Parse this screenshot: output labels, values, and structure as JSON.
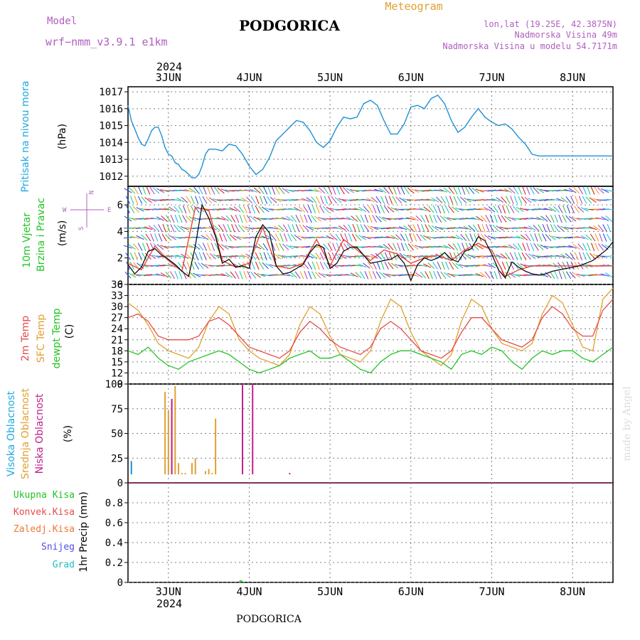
{
  "header": {
    "model_label": "Model",
    "model_name": "wrf−nmm_v3.9.1  e1km",
    "title": "PODGORICA",
    "meteogram": "Meteogram",
    "coords": "lon,lat (19.25E, 42.3875N)",
    "altitude": "Nadmorska Visina 49m",
    "model_altitude": "Nadmorska Visina u modelu 54.7171m",
    "year_top": "2024",
    "year_bottom": "2024",
    "footer_title": "PODGORICA",
    "watermark": "made by Angel"
  },
  "colors": {
    "pressure": "#1e90d6",
    "wind_speed": "#000000",
    "wind_gust": "#e8463c",
    "t2m": "#e84a4a",
    "sfc": "#e0a030",
    "dewpt": "#22c422",
    "high_cloud": "#1e90d6",
    "mid_cloud": "#e0a030",
    "low_cloud": "#c0208a",
    "grid": "#808080"
  },
  "days": [
    "3JUN",
    "4JUN",
    "5JUN",
    "6JUN",
    "7JUN",
    "8JUN"
  ],
  "panels": {
    "pressure": {
      "label_main": "Pritisak na nivou mora",
      "unit": "(hPa)",
      "ticks": [
        "1012",
        "1013",
        "1014",
        "1015",
        "1016",
        "1017"
      ]
    },
    "wind": {
      "label_line1": "10m Vjetar",
      "label_line2": "Brzina i Pravac",
      "unit": "(m/s)",
      "compass_w": "W",
      "compass_e": "E",
      "compass_n": "N",
      "compass_s": "S",
      "ticks": [
        "0",
        "2",
        "4",
        "6"
      ]
    },
    "temp": {
      "label_2m": "2m Temp",
      "label_sfc": "SFC Temp",
      "label_dew": "dewpt Temp",
      "unit": "(C)",
      "ticks": [
        "9",
        "12",
        "15",
        "18",
        "21",
        "24",
        "27",
        "30",
        "33",
        "36"
      ]
    },
    "cloud": {
      "label_high": "Visoka Oblacnost",
      "label_mid": "Srednja Oblacnost",
      "label_low": "Niska Oblacnost",
      "unit": "(%)",
      "ticks": [
        "0",
        "25",
        "50",
        "75",
        "100"
      ]
    },
    "precip": {
      "label_total": "Ukupna Kisa",
      "label_conv": "Konvek.Kisa",
      "label_frz": "Zaledj.Kisa",
      "label_snow": "Snijeg",
      "label_grad": "Grad",
      "unit": "1hr Precip (mm)",
      "ticks": [
        "0",
        "0.2",
        "0.4",
        "0.6",
        "0.8"
      ]
    }
  },
  "chart_data": [
    {
      "type": "line",
      "name": "pressure",
      "x_unit": "hours from 2024-06-02 12UTC",
      "xlim": [
        0,
        144
      ],
      "ylim": [
        1011.4,
        1017.3
      ],
      "series": [
        {
          "x": [
            0,
            1,
            2,
            3,
            4,
            5,
            6,
            7,
            8,
            9,
            10,
            11,
            12,
            13,
            14,
            15,
            16,
            17,
            18,
            19,
            20,
            21,
            22,
            23,
            24,
            26,
            28,
            30,
            32,
            34,
            36,
            38,
            40,
            42,
            44,
            46,
            48,
            50,
            52,
            54,
            56,
            58,
            60,
            62,
            64,
            66,
            68,
            70,
            72,
            74,
            76,
            78,
            80,
            82,
            84,
            86,
            88,
            90,
            92,
            94,
            96,
            98,
            100,
            102,
            104,
            106,
            108,
            110,
            112,
            114,
            116,
            118,
            120,
            122,
            124,
            126,
            128,
            130,
            132,
            134,
            136,
            138,
            140,
            142,
            144
          ],
          "y": [
            1016.2,
            1015.3,
            1014.8,
            1014.3,
            1013.9,
            1013.8,
            1014.2,
            1014.7,
            1014.9,
            1014.9,
            1014.4,
            1013.7,
            1013.3,
            1013.2,
            1012.8,
            1012.7,
            1012.4,
            1012.3,
            1012.1,
            1011.9,
            1011.9,
            1012.1,
            1012.6,
            1013.3,
            1013.6,
            1013.6,
            1013.5,
            1013.9,
            1013.8,
            1013.3,
            1012.6,
            1012.1,
            1012.4,
            1013.1,
            1014.1,
            1014.5,
            1014.9,
            1015.3,
            1015.2,
            1014.7,
            1014.0,
            1013.7,
            1014.1,
            1014.9,
            1015.5,
            1015.4,
            1015.5,
            1016.3,
            1016.5,
            1016.2,
            1015.3,
            1014.5,
            1014.5,
            1015.1,
            1016.1,
            1016.2,
            1016.0,
            1016.6,
            1016.8,
            1016.3,
            1015.3,
            1014.6,
            1014.9,
            1015.5,
            1016.0,
            1015.5,
            1015.2,
            1015.0,
            1015.1,
            1014.8,
            1014.3,
            1013.9,
            1013.3,
            1013.2,
            1013.2,
            1013.2,
            1013.2,
            1013.2,
            1013.2,
            1013.2,
            1013.2,
            1013.2,
            1013.2,
            1013.2,
            1013.2
          ]
        }
      ]
    },
    {
      "type": "line",
      "name": "wind",
      "x_unit": "hours from 2024-06-02 12UTC",
      "xlim": [
        0,
        144
      ],
      "ylim": [
        0,
        7.4
      ],
      "series": [
        {
          "name": "speed",
          "x": [
            0,
            2,
            4,
            6,
            8,
            10,
            12,
            14,
            16,
            18,
            20,
            22,
            24,
            26,
            28,
            30,
            32,
            34,
            36,
            38,
            40,
            42,
            44,
            46,
            48,
            50,
            52,
            54,
            56,
            58,
            60,
            62,
            64,
            66,
            68,
            70,
            72,
            74,
            76,
            78,
            80,
            82,
            84,
            86,
            88,
            90,
            92,
            94,
            96,
            98,
            100,
            102,
            104,
            106,
            108,
            110,
            112,
            114,
            116,
            118,
            120,
            122,
            124,
            126,
            128,
            130,
            132,
            134,
            136,
            138,
            140,
            142,
            144
          ],
          "y": [
            1.5,
            0.8,
            1.3,
            2.5,
            2.7,
            2.2,
            1.9,
            1.5,
            1.0,
            0.6,
            2.9,
            6.0,
            5.0,
            3.6,
            1.6,
            1.9,
            1.3,
            1.4,
            1.2,
            3.6,
            4.5,
            3.9,
            1.4,
            0.8,
            0.9,
            1.2,
            1.5,
            2.4,
            3.0,
            2.8,
            1.2,
            1.6,
            2.5,
            2.8,
            2.8,
            2.2,
            1.6,
            1.7,
            1.8,
            1.9,
            2.2,
            1.6,
            0.3,
            1.5,
            2.0,
            1.8,
            2.0,
            2.4,
            1.9,
            1.7,
            2.5,
            2.7,
            3.6,
            3.3,
            2.3,
            1.1,
            0.5,
            1.7,
            1.3,
            1.0,
            0.8,
            0.7,
            0.8,
            1.0,
            1.1,
            1.2,
            1.3,
            1.4,
            1.6,
            1.8,
            2.2,
            2.6,
            3.2
          ]
        },
        {
          "name": "gust",
          "x": [
            0,
            4,
            8,
            12,
            16,
            20,
            24,
            28,
            32,
            36,
            40,
            44,
            48,
            52,
            56,
            60,
            64,
            68,
            72,
            76,
            80,
            84,
            88,
            92,
            96,
            100,
            104,
            108,
            112,
            116,
            120,
            124,
            128,
            132,
            136,
            140,
            144
          ],
          "y": [
            1.6,
            1.1,
            2.9,
            1.8,
            1.0,
            5.8,
            5.6,
            1.8,
            1.3,
            1.6,
            4.3,
            1.4,
            1.2,
            1.6,
            3.4,
            1.4,
            3.4,
            2.6,
            1.8,
            2.6,
            2.3,
            1.6,
            2.0,
            2.2,
            1.8,
            2.6,
            3.1,
            2.6,
            0.6,
            1.1,
            1.4,
            1.4,
            1.4,
            1.4,
            1.4,
            1.4,
            1.4
          ]
        }
      ]
    },
    {
      "type": "line",
      "name": "temperature",
      "x_unit": "hours from 2024-06-02 12UTC",
      "xlim": [
        0,
        144
      ],
      "ylim": [
        9,
        36
      ],
      "series": [
        {
          "name": "2m",
          "x": [
            0,
            3,
            6,
            9,
            12,
            15,
            18,
            21,
            24,
            27,
            30,
            33,
            36,
            39,
            42,
            45,
            48,
            51,
            54,
            57,
            60,
            63,
            66,
            69,
            72,
            75,
            78,
            81,
            84,
            87,
            90,
            93,
            96,
            99,
            102,
            105,
            108,
            111,
            114,
            117,
            120,
            123,
            126,
            129,
            132,
            135,
            138,
            141,
            144
          ],
          "y": [
            27,
            28,
            26,
            22,
            21,
            21,
            21,
            22,
            26,
            27,
            25,
            22,
            19,
            18,
            17,
            16,
            18,
            23,
            26,
            24,
            21,
            19,
            18,
            17,
            19,
            24,
            26,
            24,
            21,
            18,
            17,
            16,
            18,
            23,
            27,
            27,
            24,
            21,
            20,
            19,
            21,
            27,
            30,
            28,
            24,
            22,
            22,
            29,
            32
          ]
        },
        {
          "name": "SFC",
          "x": [
            0,
            3,
            6,
            9,
            12,
            15,
            18,
            21,
            24,
            27,
            30,
            33,
            36,
            39,
            42,
            45,
            48,
            51,
            54,
            57,
            60,
            63,
            66,
            69,
            72,
            75,
            78,
            81,
            84,
            87,
            90,
            93,
            96,
            99,
            102,
            105,
            108,
            111,
            114,
            117,
            120,
            123,
            126,
            129,
            132,
            135,
            138,
            141,
            144
          ],
          "y": [
            31,
            29,
            25,
            20,
            18,
            17,
            16,
            19,
            26,
            30,
            28,
            21,
            18,
            16,
            15,
            14,
            17,
            25,
            30,
            28,
            22,
            17,
            16,
            15,
            18,
            26,
            32,
            30,
            23,
            18,
            16,
            14,
            17,
            26,
            32,
            30,
            24,
            20,
            19,
            18,
            20,
            28,
            33,
            31,
            25,
            19,
            18,
            32,
            35
          ]
        },
        {
          "name": "dewpt",
          "x": [
            0,
            3,
            6,
            9,
            12,
            15,
            18,
            21,
            24,
            27,
            30,
            33,
            36,
            39,
            42,
            45,
            48,
            51,
            54,
            57,
            60,
            63,
            66,
            69,
            72,
            75,
            78,
            81,
            84,
            87,
            90,
            93,
            96,
            99,
            102,
            105,
            108,
            111,
            114,
            117,
            120,
            123,
            126,
            129,
            132,
            135,
            138,
            141,
            144
          ],
          "y": [
            18,
            17,
            19,
            16,
            14,
            13,
            15,
            16,
            17,
            18,
            17,
            15,
            13,
            12,
            13,
            14,
            16,
            17,
            18,
            16,
            16,
            17,
            15,
            13,
            12,
            15,
            17,
            18,
            18,
            17,
            16,
            15,
            13,
            17,
            18,
            17,
            19,
            18,
            15,
            13,
            16,
            18,
            17,
            18,
            18,
            16,
            15,
            17,
            19
          ]
        }
      ]
    },
    {
      "type": "bar",
      "name": "cloud cover",
      "x_unit": "hours from 2024-06-02 12UTC",
      "xlim": [
        0,
        144
      ],
      "ylim": [
        0,
        100
      ],
      "series": [
        {
          "name": "high",
          "x": [
            1,
            27
          ],
          "values": [
            22,
            1
          ]
        },
        {
          "name": "mid",
          "x": [
            11,
            12,
            13,
            14,
            15,
            16,
            17,
            18,
            19,
            20,
            22,
            23,
            24,
            25,
            26,
            27
          ],
          "values": [
            92,
            73,
            84,
            98,
            20,
            10,
            10,
            0,
            20,
            25,
            0,
            12,
            14,
            10,
            65,
            0
          ]
        },
        {
          "name": "low",
          "x": [
            13,
            34,
            37,
            48
          ],
          "values": [
            85,
            100,
            100,
            10
          ]
        }
      ]
    },
    {
      "type": "bar",
      "name": "1hr precip",
      "x_unit": "hours from 2024-06-02 12UTC",
      "xlim": [
        0,
        144
      ],
      "ylim": [
        0,
        1.0
      ],
      "series": [
        {
          "name": "total",
          "x": [
            33.5
          ],
          "values": [
            0.02
          ]
        }
      ]
    }
  ]
}
